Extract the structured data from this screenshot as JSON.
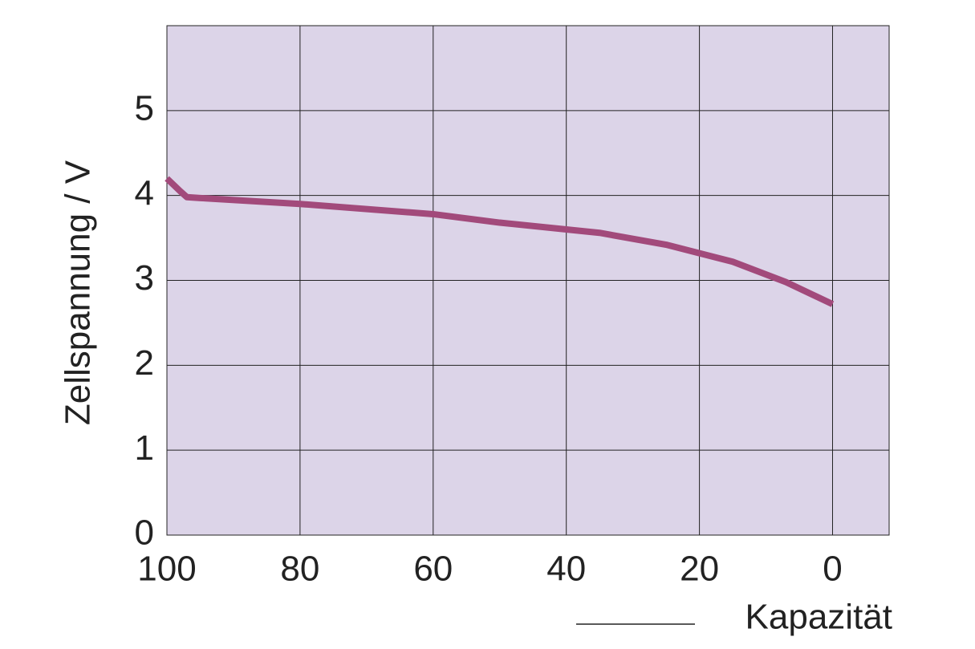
{
  "chart_data": {
    "type": "line",
    "x_label": "Kapazität",
    "y_label": "Zellspannung / V",
    "x": [
      100,
      98,
      97,
      95,
      80,
      60,
      50,
      40,
      35,
      25,
      15,
      7,
      0
    ],
    "series": [
      {
        "color": "#a24a7b",
        "values": [
          4.2,
          4.05,
          3.98,
          3.97,
          3.9,
          3.78,
          3.68,
          3.6,
          3.56,
          3.42,
          3.22,
          2.98,
          2.72
        ]
      }
    ],
    "xlim": [
      100,
      -8.5
    ],
    "xticks": [
      100,
      80,
      60,
      40,
      20,
      0
    ],
    "ylim": [
      0,
      6
    ],
    "yticks": [
      0,
      1,
      2,
      3,
      4,
      5
    ],
    "grid": true,
    "background": "#dcd4e8"
  }
}
